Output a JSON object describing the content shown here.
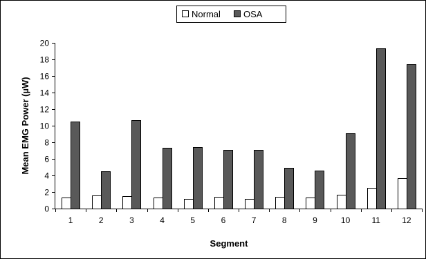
{
  "chart_data": {
    "type": "bar",
    "categories": [
      "1",
      "2",
      "3",
      "4",
      "5",
      "6",
      "7",
      "8",
      "9",
      "10",
      "11",
      "12"
    ],
    "series": [
      {
        "name": "Normal",
        "values": [
          1.3,
          1.6,
          1.5,
          1.3,
          1.2,
          1.4,
          1.2,
          1.4,
          1.3,
          1.7,
          2.5,
          3.7
        ],
        "color": "#ffffff"
      },
      {
        "name": "OSA",
        "values": [
          10.5,
          4.5,
          10.7,
          7.3,
          7.4,
          7.1,
          7.1,
          4.9,
          4.6,
          9.1,
          19.3,
          17.4
        ],
        "color": "#595959"
      }
    ],
    "title": "",
    "xlabel": "Segment",
    "ylabel": "Mean EMG Power (µW)",
    "ylim": [
      0,
      20
    ],
    "yticks": [
      "0",
      "2",
      "4",
      "6",
      "8",
      "10",
      "12",
      "14",
      "16",
      "18",
      "20"
    ],
    "grid": false,
    "legend_position": "top-center"
  }
}
